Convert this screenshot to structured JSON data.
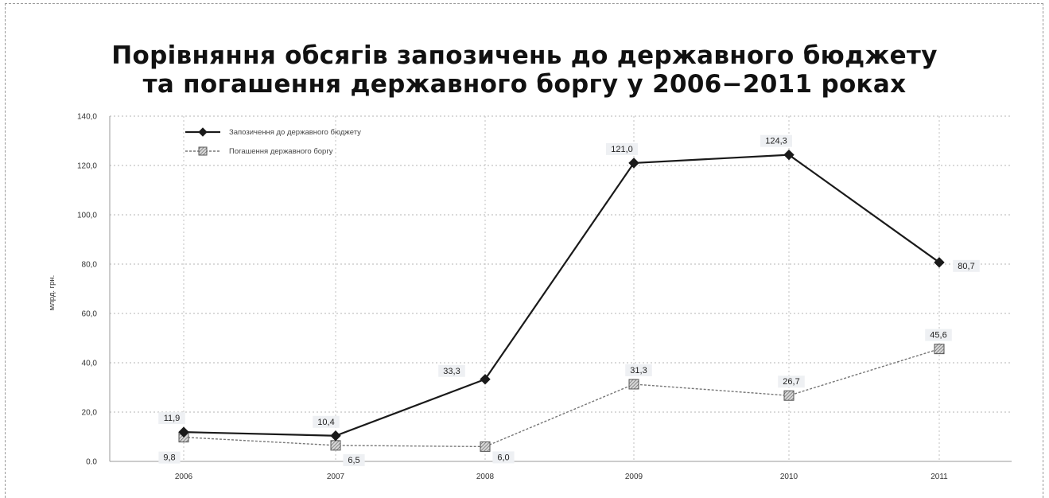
{
  "chart_data": {
    "type": "line",
    "title_line1": "Порівняння обсягів запозичень до державного бюджету",
    "title_line2": "та погашення державного боргу у 2006−2011 роках",
    "ylabel": "млрд. грн.",
    "xlabel": "",
    "ylim": [
      0,
      140
    ],
    "yticks": [
      "0.0",
      "20,0",
      "40,0",
      "60,0",
      "80,0",
      "100,0",
      "120,0",
      "140,0"
    ],
    "categories": [
      "2006",
      "2007",
      "2008",
      "2009",
      "2010",
      "2011"
    ],
    "grid": true,
    "legend_position": "top-left",
    "series": [
      {
        "name": "Запозичення до державного бюджету",
        "values": [
          11.9,
          10.4,
          33.3,
          121.0,
          124.3,
          80.7
        ],
        "labels": [
          "11,9",
          "10,4",
          "33,3",
          "121,0",
          "124,3",
          "80,7"
        ],
        "color": "#1a1a1a",
        "marker": "diamond"
      },
      {
        "name": "Погашення державного боргу",
        "values": [
          9.8,
          6.5,
          6.0,
          31.3,
          26.7,
          45.6
        ],
        "labels": [
          "9,8",
          "6,5",
          "6,0",
          "31,3",
          "26,7",
          "45,6"
        ],
        "color": "#777777",
        "marker": "square"
      }
    ]
  }
}
